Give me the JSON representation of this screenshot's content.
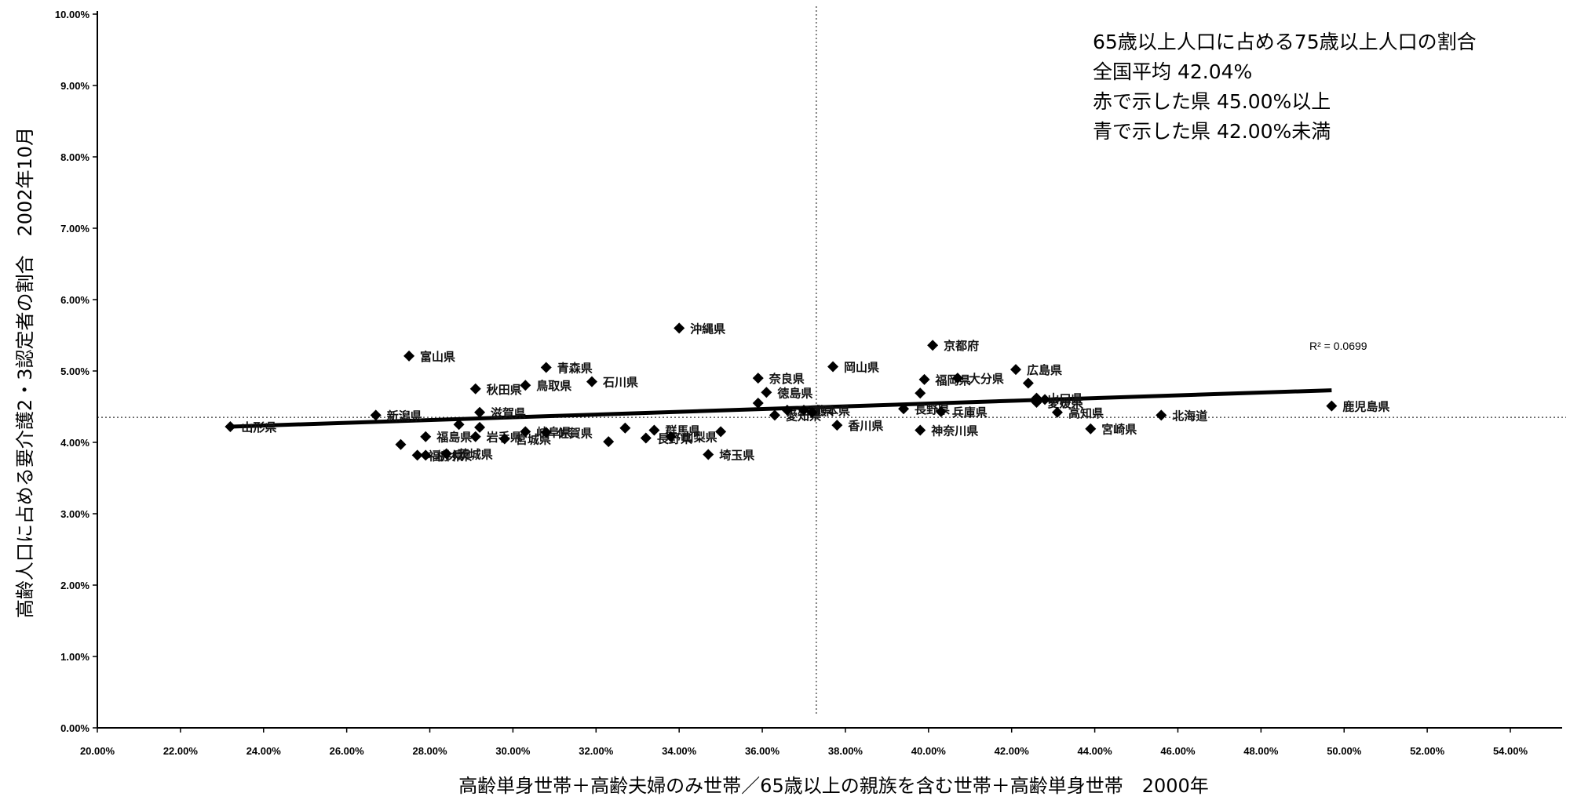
{
  "chart_data": {
    "type": "scatter",
    "xlabel": "高齢単身世帯＋高齢夫婦のみ世帯／65歳以上の親族を含む世帯＋高齢単身世帯　2000年",
    "ylabel": "高齢人口に占める要介護2・3認定者の割合　2002年10月",
    "xlim": [
      20,
      54
    ],
    "ylim": [
      0,
      10
    ],
    "x_ticks": [
      "20.00%",
      "22.00%",
      "24.00%",
      "26.00%",
      "28.00%",
      "30.00%",
      "32.00%",
      "34.00%",
      "36.00%",
      "38.00%",
      "40.00%",
      "42.00%",
      "44.00%",
      "46.00%",
      "48.00%",
      "50.00%",
      "52.00%",
      "54.00%"
    ],
    "y_ticks": [
      "0.00%",
      "1.00%",
      "2.00%",
      "3.00%",
      "4.00%",
      "5.00%",
      "6.00%",
      "7.00%",
      "8.00%",
      "9.00%",
      "10.00%"
    ],
    "annotation": [
      "65歳以上人口に占める75歳以上人口の割合",
      "全国平均  42.04%",
      "赤で示した県  45.00%以上",
      "青で示した県  42.00%未満"
    ],
    "r_squared_label": "R² = 0.0699",
    "trendline": {
      "x": [
        23.2,
        49.7
      ],
      "y": [
        4.22,
        4.73
      ]
    },
    "reference_lines": {
      "x": 37.3,
      "y": 4.35
    },
    "points": [
      {
        "label": "山形県",
        "x": 23.2,
        "y": 4.22
      },
      {
        "label": "新潟県",
        "x": 26.7,
        "y": 4.38
      },
      {
        "label": "富山県",
        "x": 27.5,
        "y": 5.21
      },
      {
        "label": "",
        "x": 27.3,
        "y": 3.97
      },
      {
        "label": "福井県",
        "x": 27.7,
        "y": 3.82
      },
      {
        "label": "栃木県",
        "x": 27.9,
        "y": 3.82
      },
      {
        "label": "福島県",
        "x": 27.9,
        "y": 4.08
      },
      {
        "label": "茨城県",
        "x": 28.4,
        "y": 3.84
      },
      {
        "label": "",
        "x": 28.7,
        "y": 4.25
      },
      {
        "label": "秋田県",
        "x": 29.1,
        "y": 4.75
      },
      {
        "label": "滋賀県",
        "x": 29.2,
        "y": 4.42
      },
      {
        "label": "岩手県",
        "x": 29.1,
        "y": 4.08
      },
      {
        "label": "",
        "x": 29.2,
        "y": 4.21
      },
      {
        "label": "宮城県",
        "x": 29.8,
        "y": 4.05
      },
      {
        "label": "岐阜県",
        "x": 30.3,
        "y": 4.15
      },
      {
        "label": "鳥取県",
        "x": 30.3,
        "y": 4.8
      },
      {
        "label": "青森県",
        "x": 30.8,
        "y": 5.05
      },
      {
        "label": "佐賀県",
        "x": 30.8,
        "y": 4.14
      },
      {
        "label": "石川県",
        "x": 31.9,
        "y": 4.85
      },
      {
        "label": "",
        "x": 32.3,
        "y": 4.01
      },
      {
        "label": "",
        "x": 32.7,
        "y": 4.2
      },
      {
        "label": "群馬県",
        "x": 33.4,
        "y": 4.17
      },
      {
        "label": "長野県",
        "x": 33.2,
        "y": 4.06
      },
      {
        "label": "山梨県",
        "x": 33.8,
        "y": 4.08
      },
      {
        "label": "沖縄県",
        "x": 34.0,
        "y": 5.6
      },
      {
        "label": "埼玉県",
        "x": 34.7,
        "y": 3.83
      },
      {
        "label": "",
        "x": 35.0,
        "y": 4.15
      },
      {
        "label": "奈良県",
        "x": 35.9,
        "y": 4.9
      },
      {
        "label": "",
        "x": 35.9,
        "y": 4.55
      },
      {
        "label": "徳島県",
        "x": 36.1,
        "y": 4.7
      },
      {
        "label": "愛知県",
        "x": 36.3,
        "y": 4.38
      },
      {
        "label": "三重県",
        "x": 36.6,
        "y": 4.45
      },
      {
        "label": "熊本県",
        "x": 37.0,
        "y": 4.45
      },
      {
        "label": "",
        "x": 37.2,
        "y": 4.42
      },
      {
        "label": "岡山県",
        "x": 37.7,
        "y": 5.06
      },
      {
        "label": "香川県",
        "x": 37.8,
        "y": 4.24
      },
      {
        "label": "長野県",
        "x": 39.4,
        "y": 4.47
      },
      {
        "label": "",
        "x": 39.8,
        "y": 4.69
      },
      {
        "label": "神奈川県",
        "x": 39.8,
        "y": 4.17
      },
      {
        "label": "福岡県",
        "x": 39.9,
        "y": 4.88
      },
      {
        "label": "京都府",
        "x": 40.1,
        "y": 5.36
      },
      {
        "label": "兵庫県",
        "x": 40.3,
        "y": 4.43
      },
      {
        "label": "大分県",
        "x": 40.7,
        "y": 4.9
      },
      {
        "label": "広島県",
        "x": 42.1,
        "y": 5.02
      },
      {
        "label": "",
        "x": 42.4,
        "y": 4.83
      },
      {
        "label": "山口県",
        "x": 42.6,
        "y": 4.62
      },
      {
        "label": "愛媛県",
        "x": 42.6,
        "y": 4.56
      },
      {
        "label": "",
        "x": 42.8,
        "y": 4.6
      },
      {
        "label": "高知県",
        "x": 43.1,
        "y": 4.42
      },
      {
        "label": "宮崎県",
        "x": 43.9,
        "y": 4.19
      },
      {
        "label": "北海道",
        "x": 45.6,
        "y": 4.38
      },
      {
        "label": "鹿児島県",
        "x": 49.7,
        "y": 4.51
      }
    ]
  }
}
